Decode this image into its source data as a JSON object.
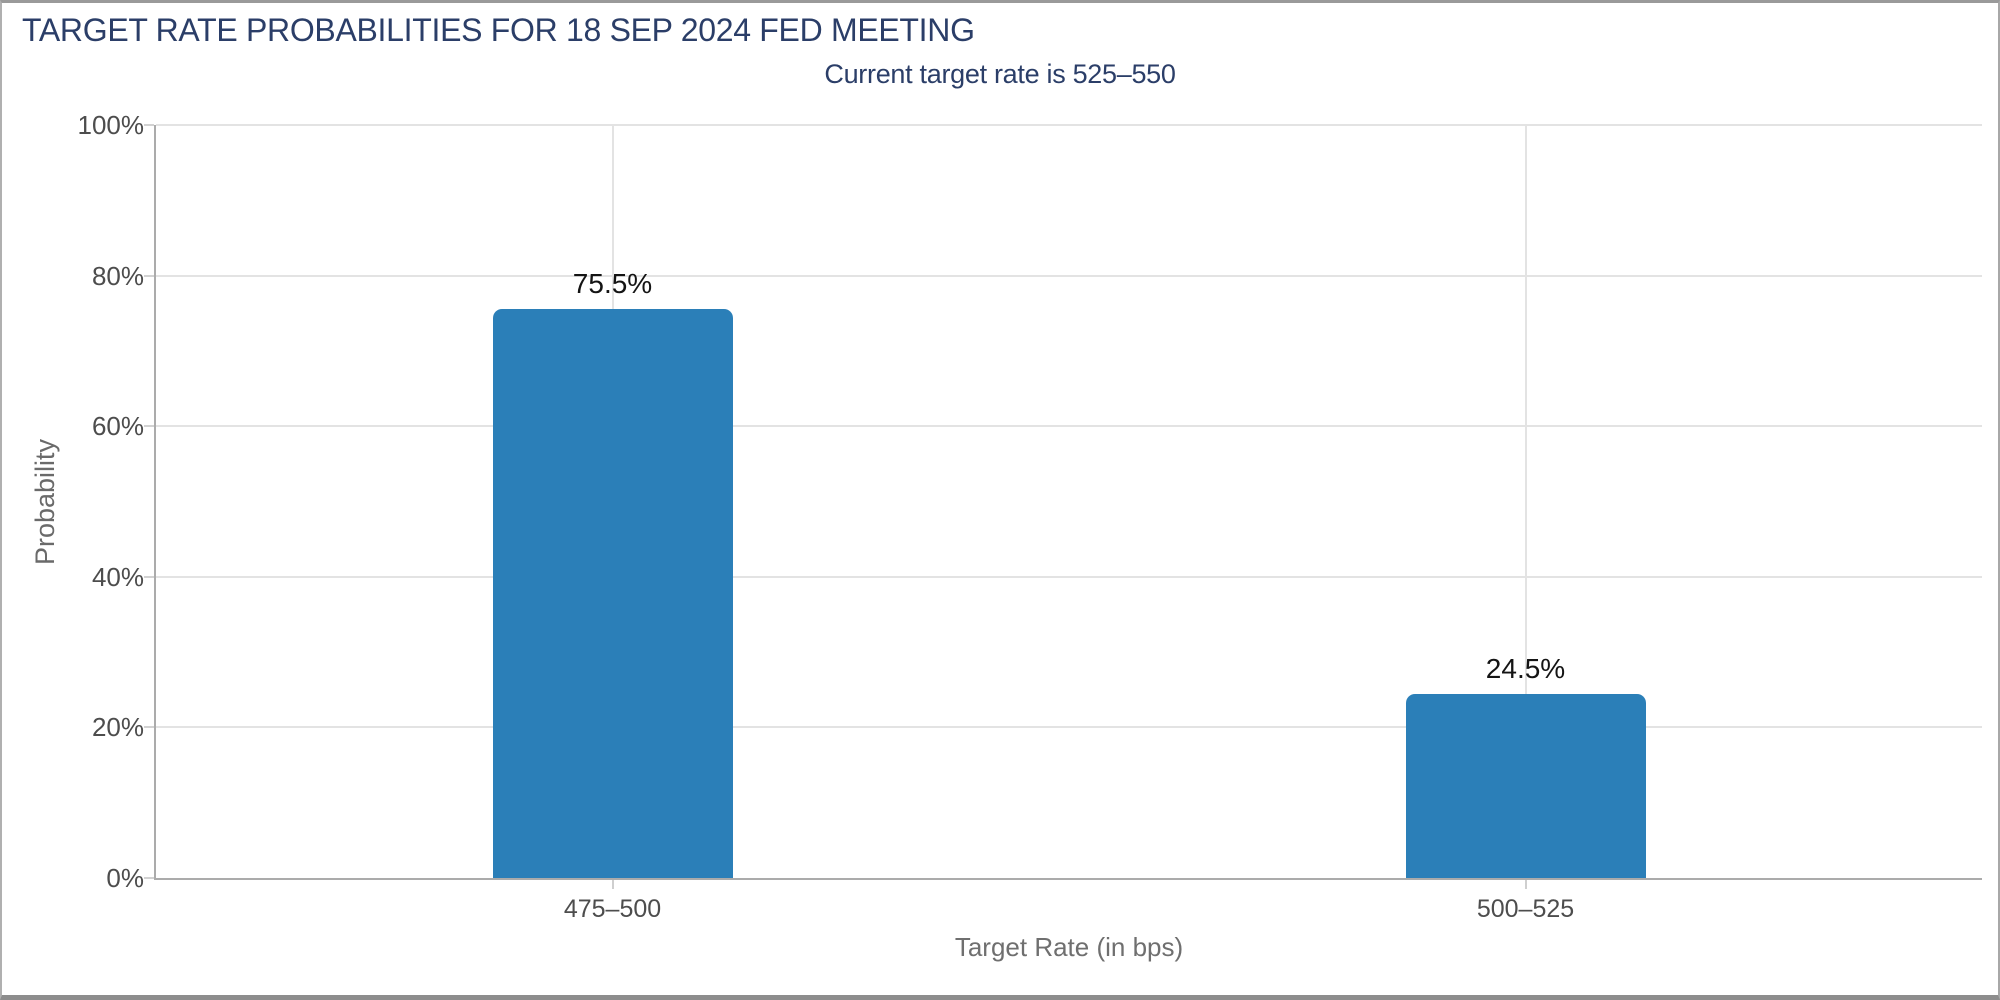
{
  "colors": {
    "title": "#2b3e68",
    "bar": "#2b7fb8"
  },
  "chart_data": {
    "type": "bar",
    "title": "TARGET RATE PROBABILITIES FOR 18 SEP 2024 FED MEETING",
    "subtitle": "Current target rate is 525–550",
    "categories": [
      "475–500",
      "500–525"
    ],
    "values": [
      75.5,
      24.5
    ],
    "value_labels": [
      "75.5%",
      "24.5%"
    ],
    "xlabel": "Target Rate (in bps)",
    "ylabel": "Probability",
    "ylim": [
      0,
      100
    ],
    "yticks": [
      0,
      20,
      40,
      60,
      80,
      100
    ],
    "ytick_labels": [
      "0%",
      "20%",
      "40%",
      "60%",
      "80%",
      "100%"
    ],
    "grid": true,
    "legend": false,
    "bar_color": "#2b7fb8"
  }
}
